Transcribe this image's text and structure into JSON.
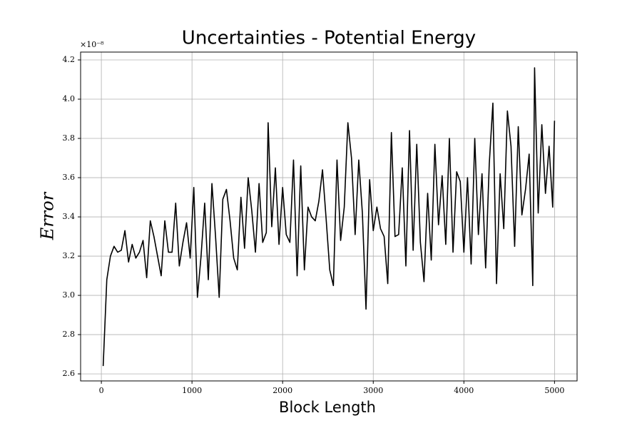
{
  "chart_data": {
    "type": "line",
    "title": "Uncertainties - Potential Energy",
    "x_label": "Block Length",
    "y_label": "Error",
    "y_offset_label": "×10⁻⁸",
    "x": [
      20,
      60,
      100,
      140,
      180,
      220,
      260,
      300,
      340,
      380,
      420,
      460,
      500,
      540,
      580,
      620,
      660,
      700,
      740,
      780,
      820,
      860,
      900,
      940,
      980,
      1020,
      1060,
      1100,
      1140,
      1180,
      1220,
      1260,
      1300,
      1340,
      1380,
      1420,
      1460,
      1500,
      1540,
      1580,
      1620,
      1660,
      1700,
      1740,
      1780,
      1820,
      1840,
      1880,
      1920,
      1960,
      2000,
      2040,
      2080,
      2120,
      2160,
      2200,
      2240,
      2280,
      2320,
      2360,
      2400,
      2440,
      2480,
      2520,
      2560,
      2600,
      2640,
      2680,
      2720,
      2760,
      2800,
      2840,
      2880,
      2920,
      2960,
      3000,
      3040,
      3080,
      3120,
      3160,
      3200,
      3240,
      3280,
      3320,
      3360,
      3400,
      3440,
      3480,
      3520,
      3560,
      3600,
      3640,
      3680,
      3720,
      3760,
      3800,
      3840,
      3880,
      3920,
      3960,
      4000,
      4040,
      4080,
      4120,
      4160,
      4200,
      4240,
      4280,
      4320,
      4360,
      4400,
      4440,
      4480,
      4520,
      4560,
      4600,
      4640,
      4680,
      4720,
      4760,
      4780,
      4820,
      4860,
      4900,
      4940,
      4980,
      5000
    ],
    "series": [
      {
        "name": "Error",
        "color": "#000000",
        "values": [
          2.64,
          3.08,
          3.2,
          3.25,
          3.22,
          3.23,
          3.33,
          3.17,
          3.26,
          3.19,
          3.22,
          3.28,
          3.09,
          3.38,
          3.3,
          3.2,
          3.1,
          3.38,
          3.22,
          3.22,
          3.47,
          3.15,
          3.27,
          3.37,
          3.19,
          3.55,
          2.99,
          3.2,
          3.47,
          3.08,
          3.57,
          3.3,
          2.99,
          3.49,
          3.54,
          3.38,
          3.19,
          3.13,
          3.5,
          3.24,
          3.6,
          3.43,
          3.22,
          3.57,
          3.27,
          3.32,
          3.88,
          3.35,
          3.65,
          3.26,
          3.55,
          3.31,
          3.27,
          3.69,
          3.1,
          3.66,
          3.13,
          3.45,
          3.4,
          3.38,
          3.48,
          3.64,
          3.39,
          3.13,
          3.05,
          3.69,
          3.28,
          3.45,
          3.88,
          3.7,
          3.31,
          3.69,
          3.42,
          2.93,
          3.59,
          3.33,
          3.45,
          3.34,
          3.3,
          3.06,
          3.83,
          3.3,
          3.31,
          3.65,
          3.15,
          3.84,
          3.23,
          3.77,
          3.27,
          3.07,
          3.52,
          3.18,
          3.77,
          3.36,
          3.61,
          3.26,
          3.8,
          3.22,
          3.63,
          3.58,
          3.22,
          3.6,
          3.16,
          3.8,
          3.31,
          3.62,
          3.14,
          3.67,
          3.98,
          3.06,
          3.62,
          3.34,
          3.94,
          3.76,
          3.25,
          3.86,
          3.41,
          3.54,
          3.72,
          3.05,
          4.16,
          3.42,
          3.87,
          3.52,
          3.76,
          3.45,
          3.89
        ]
      }
    ],
    "xlim": [
      -229,
      5249
    ],
    "ylim": [
      2.564,
      4.24
    ],
    "xticks": [
      0,
      1000,
      2000,
      3000,
      4000,
      5000
    ],
    "yticks": [
      2.6,
      2.8,
      {
        "value": 3,
        "label": "3.0"
      },
      3.2,
      3.4,
      3.6,
      3.8,
      {
        "value": 4,
        "label": "4.0"
      },
      4.2
    ],
    "grid": true
  }
}
